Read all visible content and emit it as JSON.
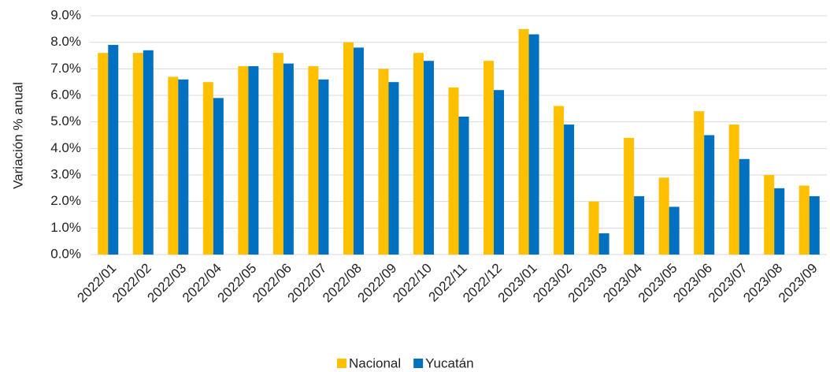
{
  "chart_data": {
    "type": "bar",
    "y_label": "Variación % anual",
    "categories": [
      "2022/01",
      "2022/02",
      "2022/03",
      "2022/04",
      "2022/05",
      "2022/06",
      "2022/07",
      "2022/08",
      "2022/09",
      "2022/10",
      "2022/11",
      "2022/12",
      "2023/01",
      "2023/02",
      "2023/03",
      "2023/04",
      "2023/05",
      "2023/06",
      "2023/07",
      "2023/08",
      "2023/09"
    ],
    "series": [
      {
        "name": "Nacional",
        "color": "#FFC000",
        "values": [
          7.6,
          7.6,
          6.7,
          6.5,
          7.1,
          7.6,
          7.1,
          8.0,
          7.0,
          7.6,
          6.3,
          7.3,
          8.5,
          5.6,
          2.0,
          4.4,
          2.9,
          5.4,
          4.9,
          3.0,
          2.6
        ]
      },
      {
        "name": "Yucatán",
        "color": "#0070C0",
        "values": [
          7.9,
          7.7,
          6.6,
          5.9,
          7.1,
          7.2,
          6.6,
          7.8,
          6.5,
          7.3,
          5.2,
          6.2,
          8.3,
          4.9,
          0.8,
          2.2,
          1.8,
          4.5,
          3.6,
          2.5,
          2.2
        ]
      }
    ],
    "ylim": [
      0,
      9
    ],
    "yticks": [
      {
        "value": 0,
        "label": "0.0%"
      },
      {
        "value": 1,
        "label": "1.0%"
      },
      {
        "value": 2,
        "label": "2.0%"
      },
      {
        "value": 3,
        "label": "3.0%"
      },
      {
        "value": 4,
        "label": "4.0%"
      },
      {
        "value": 5,
        "label": "5.0%"
      },
      {
        "value": 6,
        "label": "6.0%"
      },
      {
        "value": 7,
        "label": "7.0%"
      },
      {
        "value": 8,
        "label": "8.0%"
      },
      {
        "value": 9,
        "label": "9.0%"
      }
    ],
    "grid": true,
    "legend": "bottom"
  }
}
